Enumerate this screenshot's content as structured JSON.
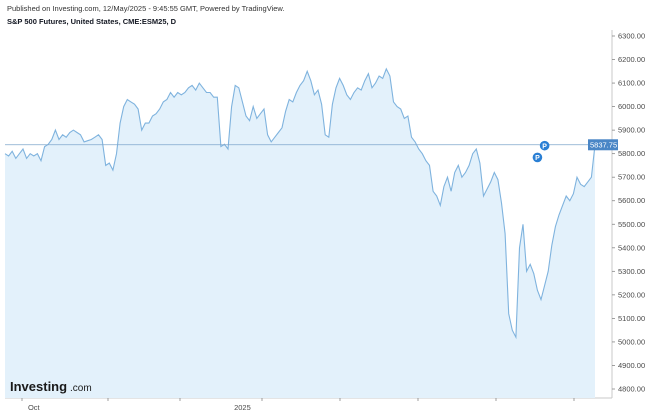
{
  "header": {
    "published": "Published on Investing.com, 12/May/2025 - 9:45:55 GMT, Powered by TradingView.",
    "symbol": "S&P 500 Futures, United States, CME:ESM25, D"
  },
  "logo": {
    "main": "Investing",
    "suffix": ".com"
  },
  "colors": {
    "line": "#7fb3de",
    "fill": "#e3f1fb",
    "hline": "#7fa6cc",
    "marker": "#2a7fd4",
    "price_label_bg": "#4a86c6"
  },
  "chart_data": {
    "type": "area",
    "title": "",
    "xlabel": "",
    "ylabel": "",
    "ylim": [
      4740,
      6340
    ],
    "yticks": [
      4800,
      4900,
      5000,
      5100,
      5200,
      5300,
      5400,
      5500,
      5600,
      5700,
      5800,
      5900,
      6000,
      6100,
      6200,
      6300
    ],
    "ytick_labels": [
      "4800.00",
      "4900.00",
      "5000.00",
      "5100.00",
      "5200.00",
      "5300.00",
      "5400.00",
      "5500.00",
      "5600.00",
      "5700.00",
      "5800.00",
      "5900.00",
      "6000.00",
      "6100.00",
      "6200.00",
      "6300.00"
    ],
    "xtick_labels": [
      {
        "label": "Oct",
        "index": 8
      },
      {
        "label": "2025",
        "index": 66
      }
    ],
    "last_value": 5837.75,
    "last_value_label": "5837.75",
    "markers": [
      {
        "label": "P",
        "index": 148,
        "value": 5750
      },
      {
        "label": "P",
        "index": 150,
        "value": 5800
      }
    ],
    "series": [
      {
        "values": [
          5800,
          5790,
          5810,
          5780,
          5800,
          5820,
          5780,
          5800,
          5790,
          5800,
          5770,
          5830,
          5840,
          5860,
          5900,
          5860,
          5880,
          5870,
          5890,
          5900,
          5890,
          5880,
          5850,
          5855,
          5860,
          5870,
          5880,
          5860,
          5750,
          5760,
          5730,
          5800,
          5930,
          6000,
          6030,
          6020,
          6010,
          5990,
          5900,
          5930,
          5930,
          5960,
          5970,
          5990,
          6020,
          6030,
          6060,
          6040,
          6060,
          6050,
          6060,
          6080,
          6090,
          6070,
          6100,
          6080,
          6060,
          6060,
          6040,
          6040,
          5830,
          5840,
          5820,
          6000,
          6090,
          6080,
          6020,
          5960,
          5940,
          6000,
          5950,
          5970,
          5990,
          5880,
          5850,
          5870,
          5890,
          5910,
          5980,
          6030,
          6020,
          6060,
          6090,
          6110,
          6150,
          6110,
          6050,
          6070,
          6010,
          5880,
          5870,
          6010,
          6080,
          6120,
          6090,
          6050,
          6030,
          6060,
          6080,
          6070,
          6110,
          6140,
          6080,
          6100,
          6130,
          6120,
          6160,
          6130,
          6020,
          6000,
          5990,
          5950,
          5960,
          5870,
          5850,
          5820,
          5800,
          5770,
          5750,
          5640,
          5620,
          5580,
          5660,
          5700,
          5640,
          5720,
          5750,
          5700,
          5720,
          5750,
          5800,
          5820,
          5760,
          5620,
          5650,
          5680,
          5720,
          5690,
          5590,
          5460,
          5120,
          5050,
          5020,
          5400,
          5500,
          5300,
          5330,
          5290,
          5220,
          5180,
          5240,
          5300,
          5410,
          5490,
          5540,
          5580,
          5620,
          5600,
          5630,
          5700,
          5670,
          5660,
          5680,
          5700,
          5837.75
        ]
      }
    ]
  }
}
